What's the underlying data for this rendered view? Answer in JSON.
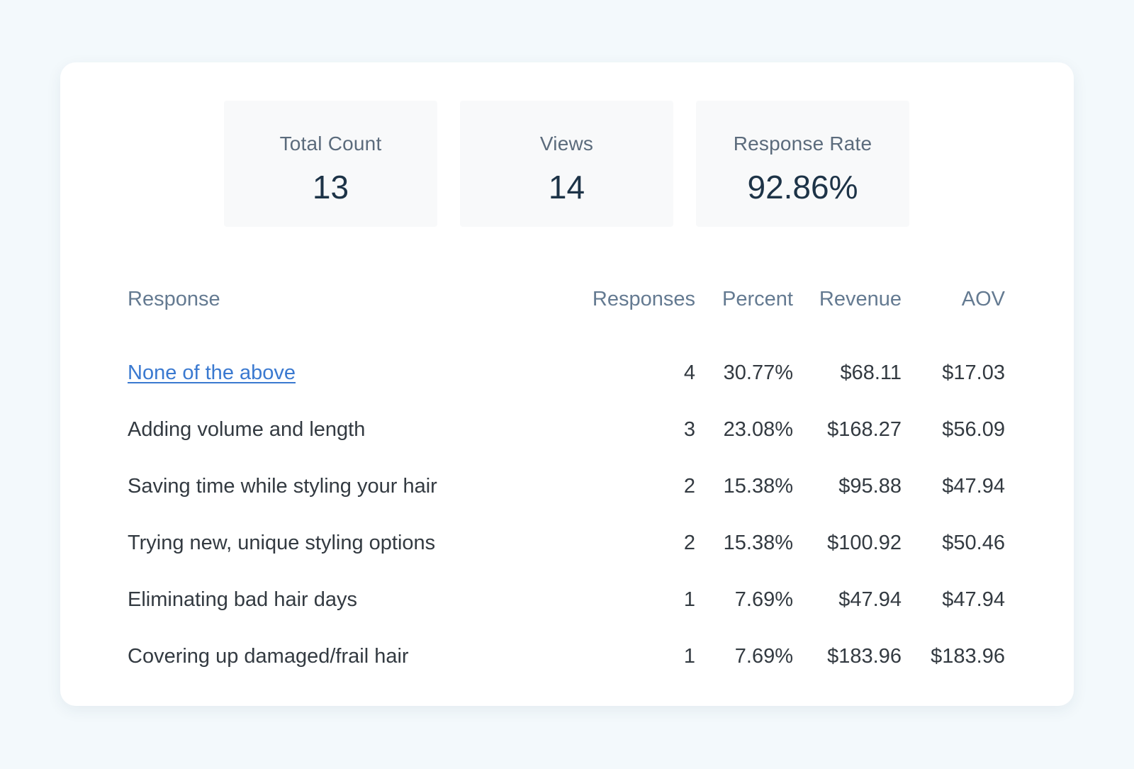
{
  "stats": {
    "total_count": {
      "label": "Total Count",
      "value": "13"
    },
    "views": {
      "label": "Views",
      "value": "14"
    },
    "response_rate": {
      "label": "Response Rate",
      "value": "92.86%"
    }
  },
  "table": {
    "headers": {
      "response": "Response",
      "responses": "Responses",
      "percent": "Percent",
      "revenue": "Revenue",
      "aov": "AOV"
    },
    "rows": [
      {
        "response": "None of the above",
        "count": "4",
        "percent": "30.77%",
        "revenue": "$68.11",
        "aov": "$17.03"
      },
      {
        "response": "Adding volume and length",
        "count": "3",
        "percent": "23.08%",
        "revenue": "$168.27",
        "aov": "$56.09"
      },
      {
        "response": "Saving time while styling your hair",
        "count": "2",
        "percent": "15.38%",
        "revenue": "$95.88",
        "aov": "$47.94"
      },
      {
        "response": "Trying new, unique styling options",
        "count": "2",
        "percent": "15.38%",
        "revenue": "$100.92",
        "aov": "$50.46"
      },
      {
        "response": "Eliminating bad hair days",
        "count": "1",
        "percent": "7.69%",
        "revenue": "$47.94",
        "aov": "$47.94"
      },
      {
        "response": "Covering up damaged/frail hair",
        "count": "1",
        "percent": "7.69%",
        "revenue": "$183.96",
        "aov": "$183.96"
      }
    ]
  }
}
